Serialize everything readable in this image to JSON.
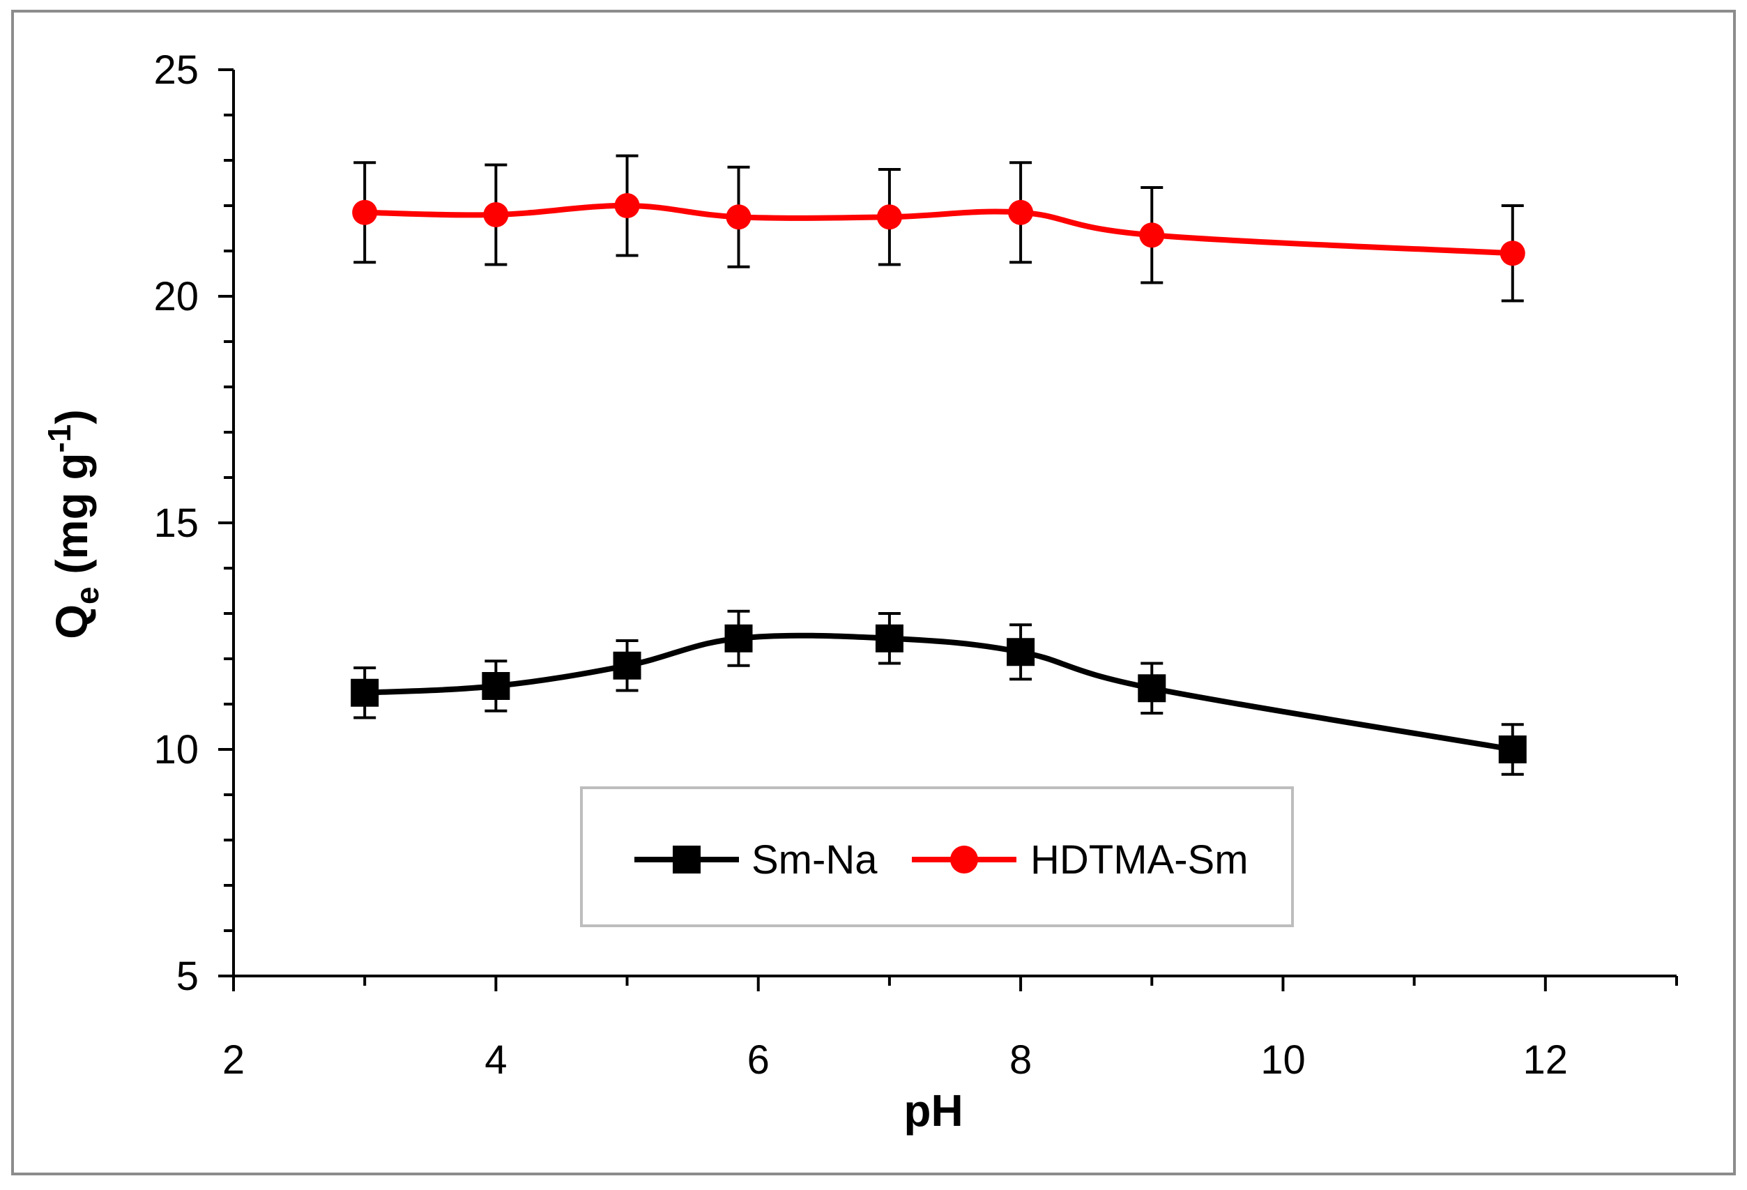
{
  "chart_data": {
    "type": "line",
    "title": "",
    "xlabel": "pH",
    "ylabel": {
      "main": "Q",
      "sub": "e",
      "unit_pre": " (mg g",
      "sup": "-1",
      "unit_post": ")"
    },
    "xlim": [
      2,
      13
    ],
    "ylim": [
      5,
      25
    ],
    "x_major_ticks": [
      2,
      4,
      6,
      8,
      10,
      12
    ],
    "x_tick_labels": [
      "2",
      "4",
      "6",
      "8",
      "10",
      "12"
    ],
    "x_minor_ticks": [
      3,
      5,
      7,
      9,
      11,
      13
    ],
    "y_major_ticks": [
      5,
      10,
      15,
      20,
      25
    ],
    "y_tick_labels": [
      "5",
      "10",
      "15",
      "20",
      "25"
    ],
    "y_minor_ticks": [
      6,
      7,
      8,
      9,
      11,
      12,
      13,
      14,
      16,
      17,
      18,
      19,
      21,
      22,
      23,
      24
    ],
    "grid": false,
    "legend_position": "bottom-center",
    "series": [
      {
        "name": "Sm-Na",
        "color": "#000000",
        "marker": "square",
        "x": [
          3,
          4,
          5,
          5.85,
          7,
          8,
          9,
          11.75
        ],
        "y": [
          11.25,
          11.4,
          11.85,
          12.45,
          12.45,
          12.15,
          11.35,
          10.0
        ],
        "error": [
          0.55,
          0.55,
          0.55,
          0.6,
          0.55,
          0.6,
          0.55,
          0.55
        ]
      },
      {
        "name": "HDTMA-Sm",
        "color": "#ff0000",
        "marker": "circle",
        "x": [
          3,
          4,
          5,
          5.85,
          7,
          8,
          9,
          11.75
        ],
        "y": [
          21.85,
          21.8,
          22.0,
          21.75,
          21.75,
          21.85,
          21.35,
          20.95
        ],
        "error": [
          1.1,
          1.1,
          1.1,
          1.1,
          1.05,
          1.1,
          1.05,
          1.05
        ]
      }
    ]
  }
}
